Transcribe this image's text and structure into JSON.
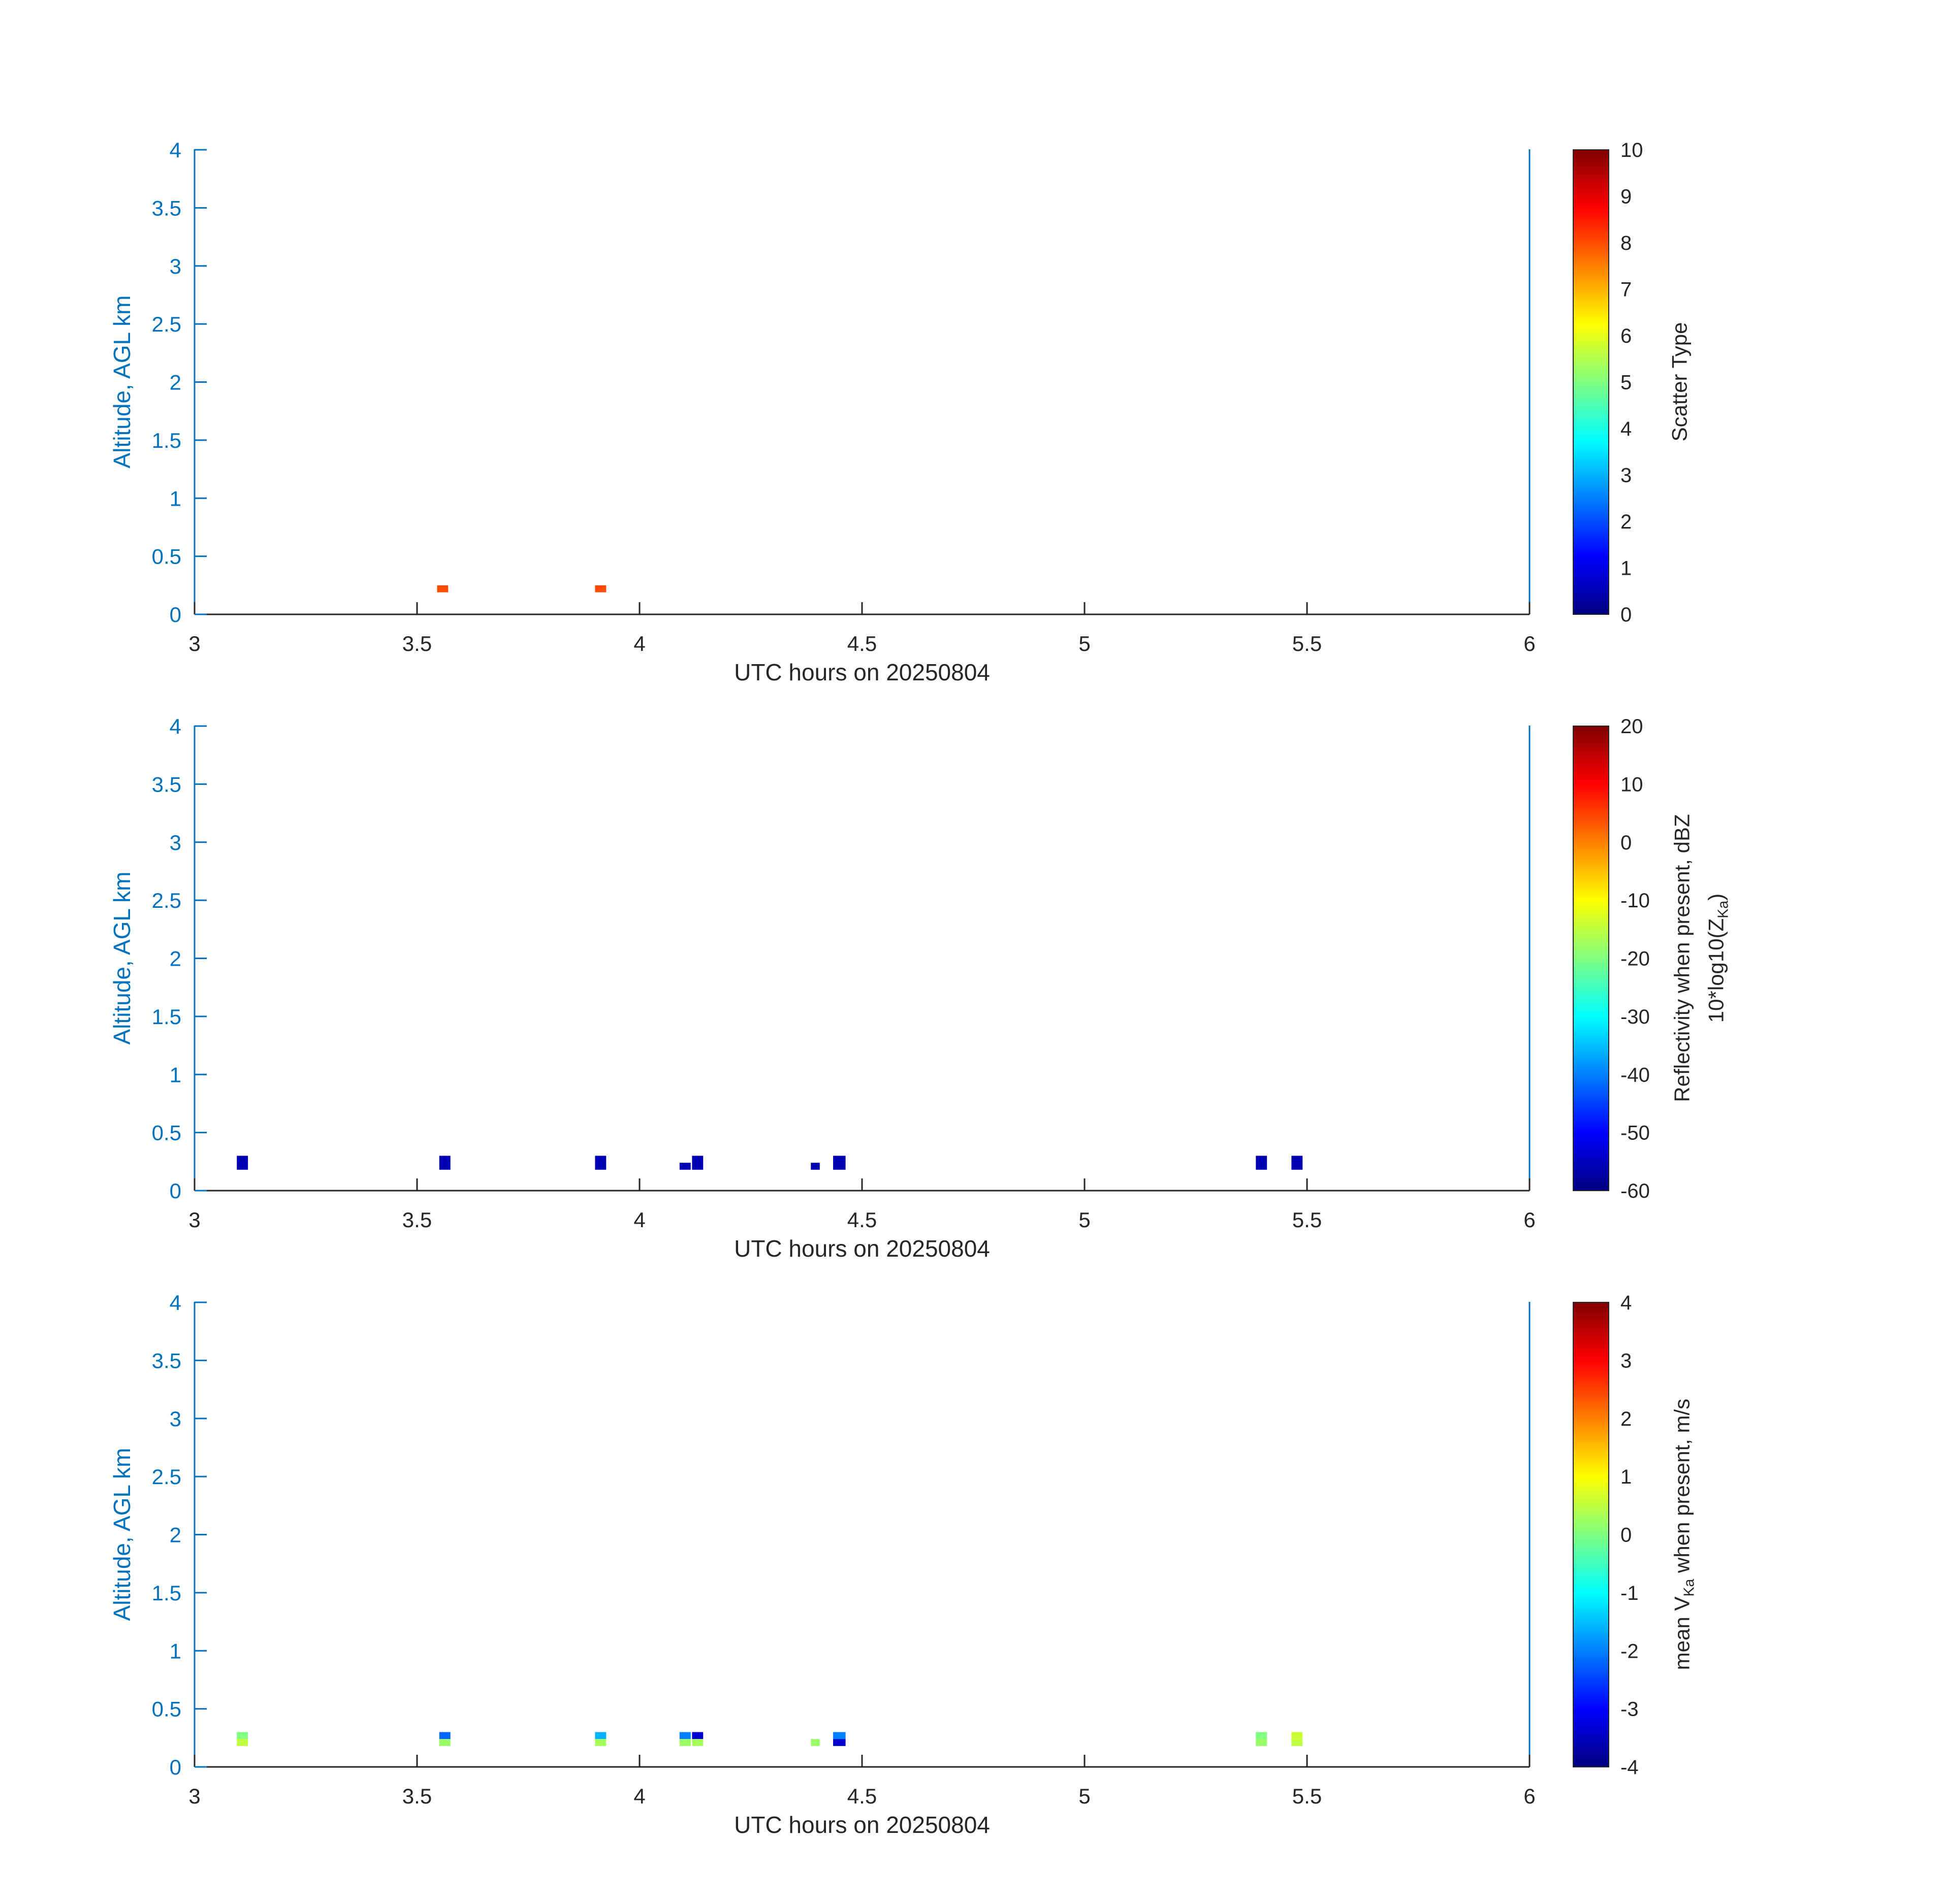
{
  "figure": {
    "background": "#ffffff",
    "x_axis_color": "#262626",
    "y_axis_color": "#0072BD",
    "colormap": "jet",
    "x_ticks": {
      "values": [
        3,
        3.5,
        4,
        4.5,
        5,
        5.5,
        6
      ],
      "labels": [
        "3",
        "3.5",
        "4",
        "4.5",
        "5",
        "5.5",
        "6"
      ]
    },
    "y_ticks": {
      "values": [
        0,
        0.5,
        1,
        1.5,
        2,
        2.5,
        3,
        3.5,
        4
      ],
      "labels": [
        "0",
        "0.5",
        "1",
        "1.5",
        "2",
        "2.5",
        "3",
        "3.5",
        "4"
      ]
    }
  },
  "chart_data": [
    {
      "type": "heatmap",
      "panel": "scatter-type",
      "title": "",
      "xlabel": "UTC hours on 20250804",
      "ylabel": "Altitude, AGL km",
      "xlim": [
        3,
        6
      ],
      "ylim": [
        0,
        4
      ],
      "grid": false,
      "colorbar": {
        "min": 0,
        "max": 10,
        "ticks": [
          0,
          1,
          2,
          3,
          4,
          5,
          6,
          7,
          8,
          9,
          10
        ],
        "lines": [
          {
            "pre": "Scatter Type",
            "sub": "",
            "post": ""
          }
        ]
      },
      "cells": [
        {
          "x": 3.545,
          "y": 0.19,
          "w": 0.025,
          "h": 0.06,
          "v": 8
        },
        {
          "x": 3.9,
          "y": 0.19,
          "w": 0.025,
          "h": 0.06,
          "v": 8
        }
      ]
    },
    {
      "type": "heatmap",
      "panel": "reflectivity",
      "title": "",
      "xlabel": "UTC hours on 20250804",
      "ylabel": "Altitude, AGL km",
      "xlim": [
        3,
        6
      ],
      "ylim": [
        0,
        4
      ],
      "grid": false,
      "colorbar": {
        "min": -60,
        "max": 20,
        "ticks": [
          -60,
          -50,
          -40,
          -30,
          -20,
          -10,
          0,
          10,
          20
        ],
        "lines": [
          {
            "pre": "Reflectivity when present, dBZ",
            "sub": "",
            "post": ""
          },
          {
            "pre": "10*log10(Z",
            "sub": "Ka",
            "post": ")"
          }
        ]
      },
      "cells": [
        {
          "x": 3.095,
          "y": 0.18,
          "w": 0.025,
          "h": 0.12,
          "v": -56
        },
        {
          "x": 3.55,
          "y": 0.18,
          "w": 0.025,
          "h": 0.12,
          "v": -56
        },
        {
          "x": 3.9,
          "y": 0.18,
          "w": 0.025,
          "h": 0.12,
          "v": -56
        },
        {
          "x": 4.09,
          "y": 0.18,
          "w": 0.025,
          "h": 0.06,
          "v": -56
        },
        {
          "x": 4.118,
          "y": 0.18,
          "w": 0.025,
          "h": 0.12,
          "v": -56
        },
        {
          "x": 4.385,
          "y": 0.18,
          "w": 0.02,
          "h": 0.06,
          "v": -56
        },
        {
          "x": 4.435,
          "y": 0.18,
          "w": 0.028,
          "h": 0.12,
          "v": -56
        },
        {
          "x": 5.385,
          "y": 0.18,
          "w": 0.025,
          "h": 0.12,
          "v": -56
        },
        {
          "x": 5.465,
          "y": 0.18,
          "w": 0.025,
          "h": 0.12,
          "v": -56
        }
      ]
    },
    {
      "type": "heatmap",
      "panel": "mean-velocity",
      "title": "",
      "xlabel": "UTC hours on 20250804",
      "ylabel": "Altitude, AGL km",
      "xlim": [
        3,
        6
      ],
      "ylim": [
        0,
        4
      ],
      "grid": false,
      "colorbar": {
        "min": -4,
        "max": 4,
        "ticks": [
          -4,
          -3,
          -2,
          -1,
          0,
          1,
          2,
          3,
          4
        ],
        "lines": [
          {
            "pre": "mean V",
            "sub": "Ka",
            "post": " when present, m/s"
          }
        ]
      },
      "cells": [
        {
          "x": 3.095,
          "y": 0.24,
          "w": 0.025,
          "h": 0.06,
          "v": 0
        },
        {
          "x": 3.095,
          "y": 0.18,
          "w": 0.025,
          "h": 0.06,
          "v": 0.5
        },
        {
          "x": 3.55,
          "y": 0.24,
          "w": 0.025,
          "h": 0.06,
          "v": -2.2
        },
        {
          "x": 3.55,
          "y": 0.18,
          "w": 0.025,
          "h": 0.06,
          "v": 0.2
        },
        {
          "x": 3.9,
          "y": 0.24,
          "w": 0.025,
          "h": 0.06,
          "v": -1.6
        },
        {
          "x": 3.9,
          "y": 0.18,
          "w": 0.025,
          "h": 0.06,
          "v": 0.3
        },
        {
          "x": 4.09,
          "y": 0.24,
          "w": 0.025,
          "h": 0.06,
          "v": -2
        },
        {
          "x": 4.118,
          "y": 0.24,
          "w": 0.025,
          "h": 0.06,
          "v": -3.4
        },
        {
          "x": 4.09,
          "y": 0.18,
          "w": 0.025,
          "h": 0.06,
          "v": 0.2
        },
        {
          "x": 4.118,
          "y": 0.18,
          "w": 0.025,
          "h": 0.06,
          "v": 0.3
        },
        {
          "x": 4.385,
          "y": 0.18,
          "w": 0.02,
          "h": 0.06,
          "v": 0.2
        },
        {
          "x": 4.435,
          "y": 0.24,
          "w": 0.028,
          "h": 0.06,
          "v": -2
        },
        {
          "x": 4.435,
          "y": 0.18,
          "w": 0.028,
          "h": 0.06,
          "v": -3.4
        },
        {
          "x": 5.385,
          "y": 0.24,
          "w": 0.025,
          "h": 0.06,
          "v": 0
        },
        {
          "x": 5.385,
          "y": 0.18,
          "w": 0.025,
          "h": 0.06,
          "v": 0.2
        },
        {
          "x": 5.465,
          "y": 0.24,
          "w": 0.025,
          "h": 0.06,
          "v": 0.6
        },
        {
          "x": 5.465,
          "y": 0.18,
          "w": 0.025,
          "h": 0.06,
          "v": 0.5
        }
      ]
    }
  ]
}
